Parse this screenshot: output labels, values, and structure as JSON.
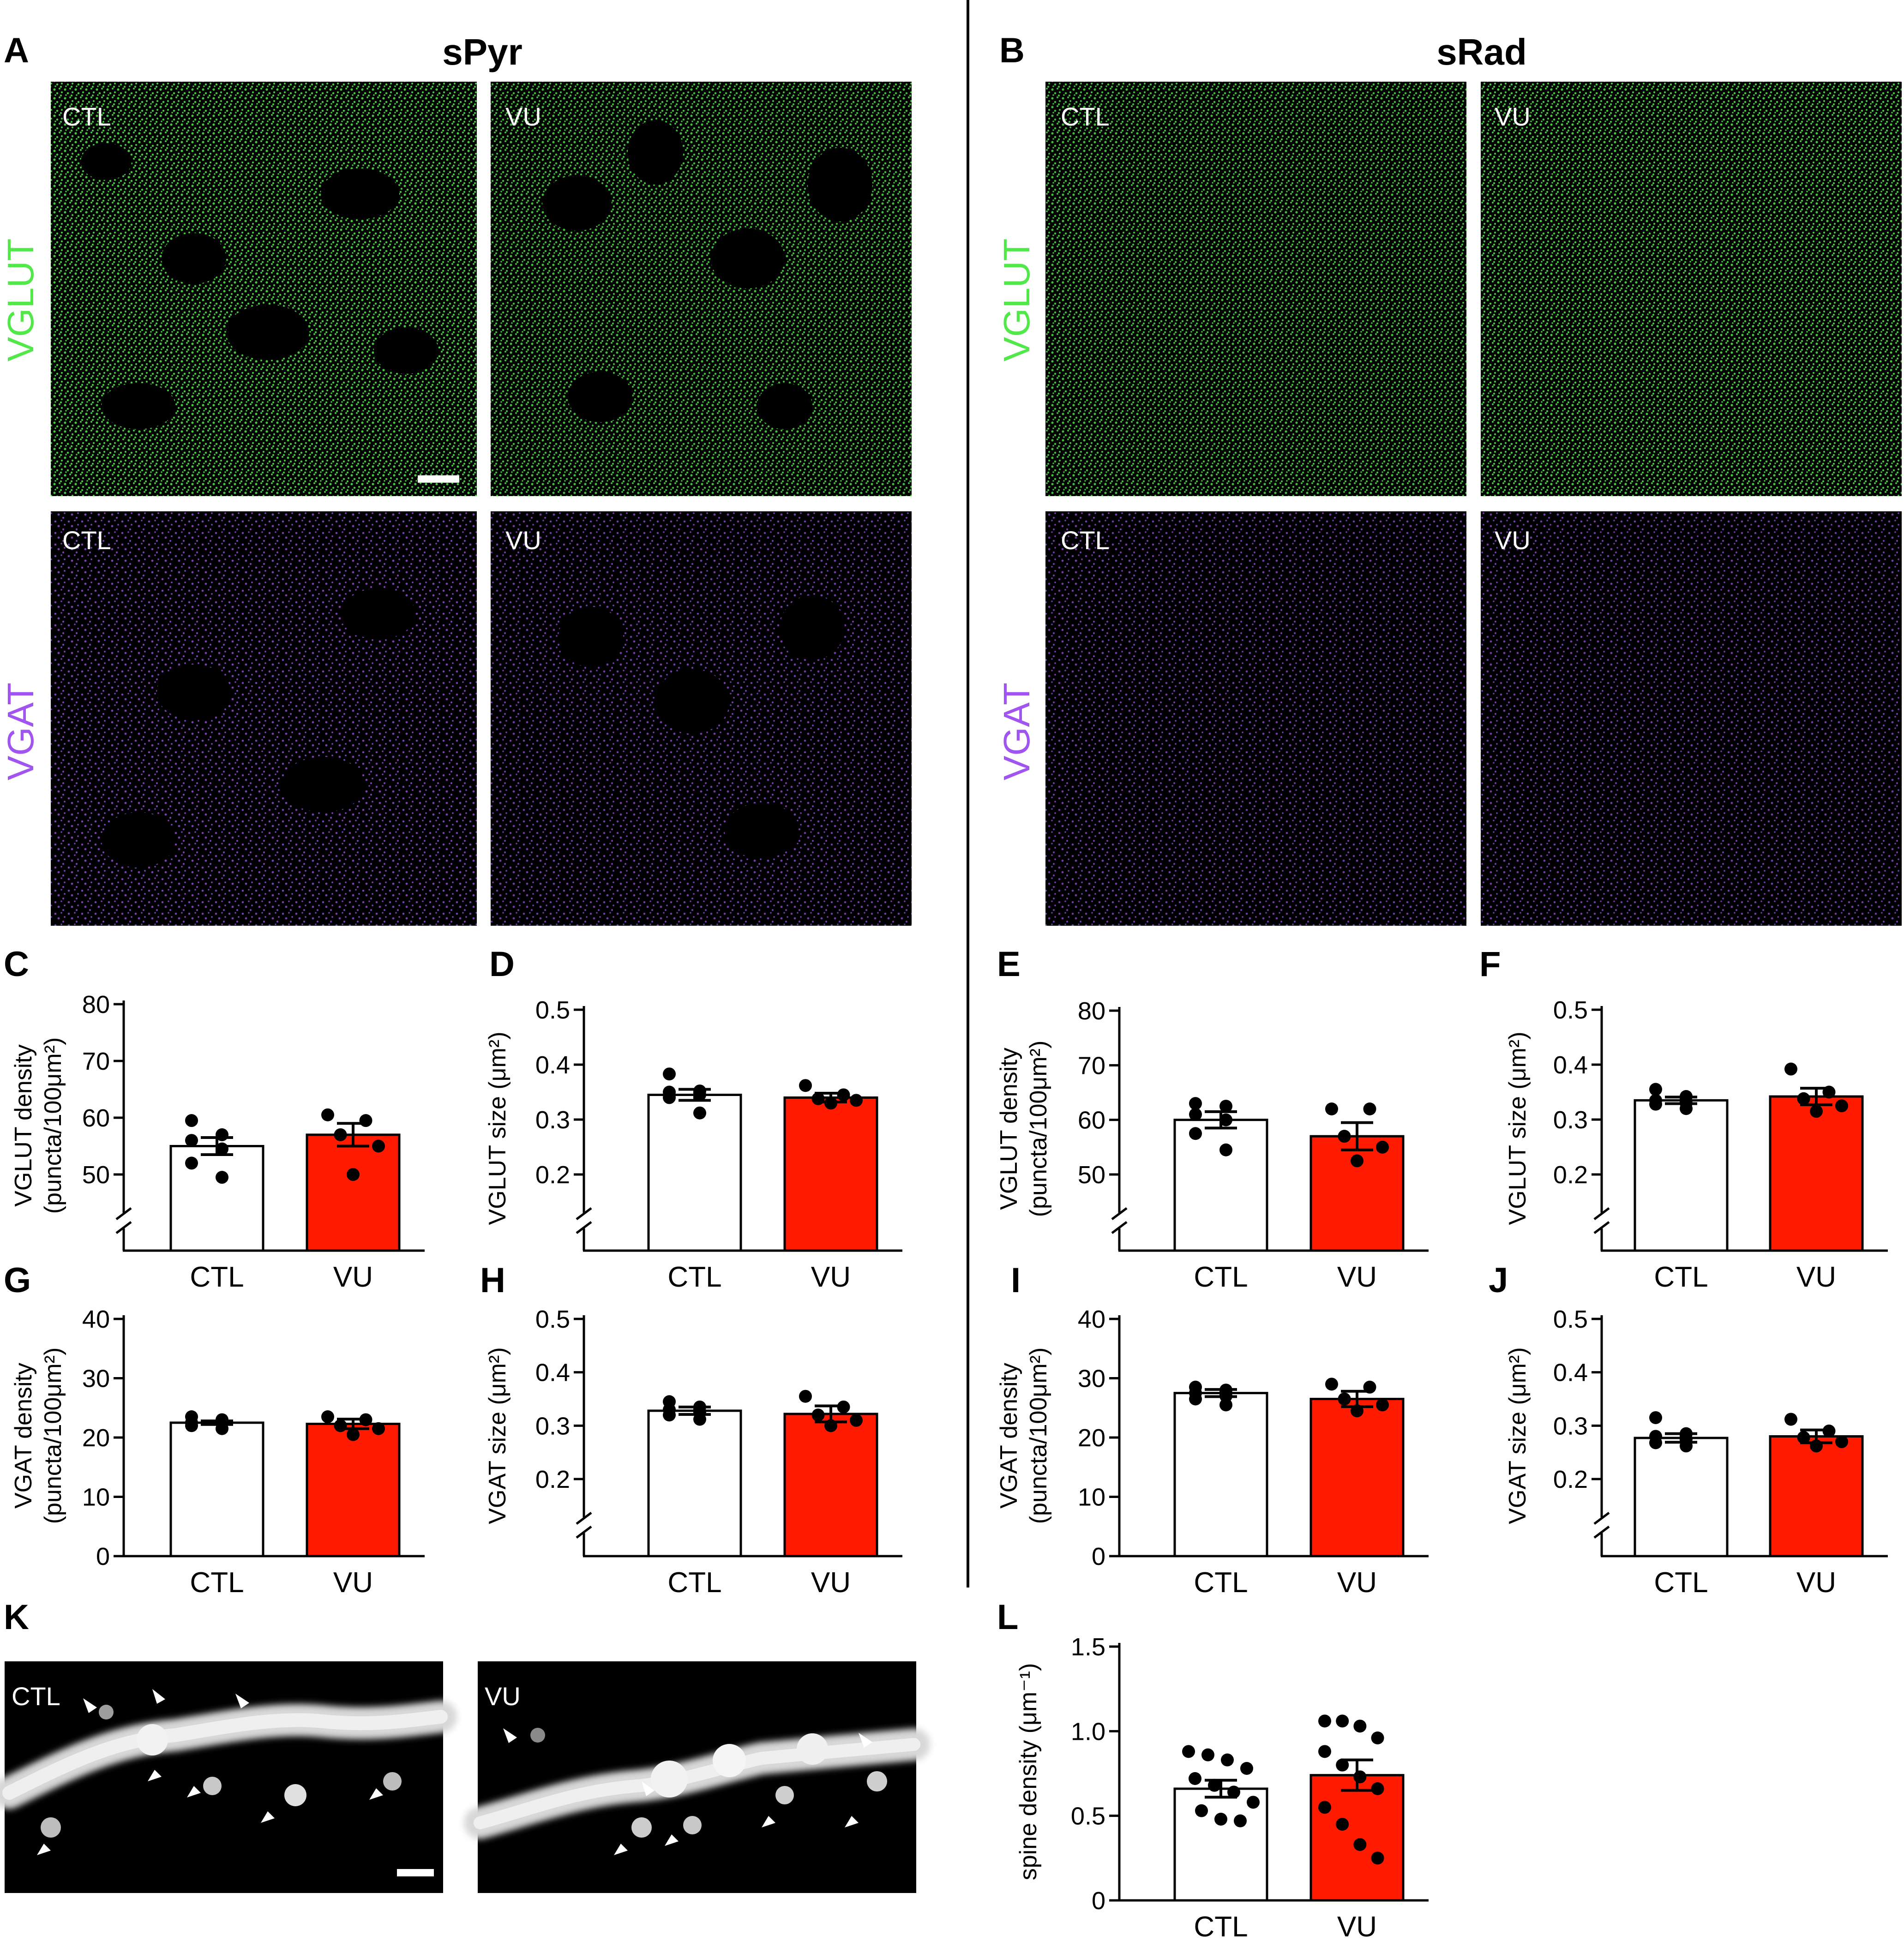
{
  "figure": {
    "panel_letters": [
      "A",
      "B",
      "C",
      "D",
      "E",
      "F",
      "G",
      "H",
      "I",
      "J",
      "K",
      "L"
    ],
    "column_titles": {
      "A": "sPyr",
      "B": "sRad"
    },
    "row_labels": {
      "vglut": "VGLUT",
      "vgat": "VGAT"
    },
    "image_tags": {
      "ctl": "CTL",
      "vu": "VU"
    },
    "colors": {
      "vglut": "#52e84a",
      "vgat": "#a155f0",
      "vu_bar": "#ff1a00",
      "ctl_bar": "#ffffff"
    }
  },
  "chart_data": [
    {
      "id": "C",
      "type": "bar",
      "categories": [
        "CTL",
        "VU"
      ],
      "values": [
        55.0,
        57.0
      ],
      "sem": [
        1.5,
        2.0
      ],
      "ylabel": [
        "VGLUT density",
        "(puncta/100μm²)"
      ],
      "ylim": [
        45,
        80
      ],
      "yticks": [
        50,
        60,
        70,
        80
      ],
      "axis_break": true,
      "points": [
        [
          59.5,
          57,
          56,
          54.5,
          52,
          49.5
        ],
        [
          60.5,
          59.5,
          57,
          55,
          50
        ]
      ]
    },
    {
      "id": "D",
      "type": "bar",
      "categories": [
        "CTL",
        "VU"
      ],
      "values": [
        0.345,
        0.34
      ],
      "sem": [
        0.01,
        0.008
      ],
      "ylabel": [
        "VGLUT size (μm²)"
      ],
      "ylim": [
        0.15,
        0.5
      ],
      "yticks": [
        0.2,
        0.3,
        0.4,
        0.5
      ],
      "axis_break": true,
      "points": [
        [
          0.383,
          0.352,
          0.35,
          0.345,
          0.34,
          0.312
        ],
        [
          0.362,
          0.345,
          0.338,
          0.335,
          0.33
        ]
      ]
    },
    {
      "id": "E",
      "type": "bar",
      "categories": [
        "CTL",
        "VU"
      ],
      "values": [
        60.0,
        57.0
      ],
      "sem": [
        1.5,
        2.5
      ],
      "ylabel": [
        "VGLUT density",
        "(puncta/100μm²)"
      ],
      "ylim": [
        45,
        80
      ],
      "yticks": [
        50,
        60,
        70,
        80
      ],
      "axis_break": true,
      "points": [
        [
          63,
          62.5,
          61,
          60,
          57.5,
          54.5
        ],
        [
          62,
          62,
          57,
          55,
          52.5
        ]
      ]
    },
    {
      "id": "F",
      "type": "bar",
      "categories": [
        "CTL",
        "VU"
      ],
      "values": [
        0.335,
        0.342
      ],
      "sem": [
        0.006,
        0.015
      ],
      "ylabel": [
        "VGLUT size (μm²)"
      ],
      "ylim": [
        0.15,
        0.5
      ],
      "yticks": [
        0.2,
        0.3,
        0.4,
        0.5
      ],
      "axis_break": true,
      "points": [
        [
          0.355,
          0.342,
          0.335,
          0.33,
          0.328,
          0.32
        ],
        [
          0.392,
          0.35,
          0.338,
          0.325,
          0.315
        ]
      ]
    },
    {
      "id": "G",
      "type": "bar",
      "categories": [
        "CTL",
        "VU"
      ],
      "values": [
        22.5,
        22.3
      ],
      "sem": [
        0.3,
        0.8
      ],
      "ylabel": [
        "VGAT density",
        "(puncta/100μm²)"
      ],
      "ylim": [
        0,
        40
      ],
      "yticks": [
        0,
        10,
        20,
        30,
        40
      ],
      "axis_break": false,
      "points": [
        [
          23.5,
          23,
          22.5,
          22.5,
          22,
          21.5
        ],
        [
          23.5,
          23,
          22,
          21.5,
          20.5
        ]
      ]
    },
    {
      "id": "H",
      "type": "bar",
      "categories": [
        "CTL",
        "VU"
      ],
      "values": [
        0.328,
        0.322
      ],
      "sem": [
        0.007,
        0.015
      ],
      "ylabel": [
        "VGAT size (μm²)"
      ],
      "ylim": [
        0.15,
        0.5
      ],
      "yticks": [
        0.2,
        0.3,
        0.4,
        0.5
      ],
      "axis_break": true,
      "points": [
        [
          0.345,
          0.335,
          0.33,
          0.325,
          0.32,
          0.312
        ],
        [
          0.355,
          0.335,
          0.32,
          0.31,
          0.3
        ]
      ]
    },
    {
      "id": "I",
      "type": "bar",
      "categories": [
        "CTL",
        "VU"
      ],
      "values": [
        27.5,
        26.5
      ],
      "sem": [
        0.6,
        1.3
      ],
      "ylabel": [
        "VGAT density",
        "(puncta/100μm²)"
      ],
      "ylim": [
        0,
        40
      ],
      "yticks": [
        0,
        10,
        20,
        30,
        40
      ],
      "axis_break": false,
      "points": [
        [
          28.5,
          28,
          27.5,
          27,
          26.5,
          25.5
        ],
        [
          29,
          28.5,
          26.5,
          25.5,
          24.5
        ]
      ]
    },
    {
      "id": "J",
      "type": "bar",
      "categories": [
        "CTL",
        "VU"
      ],
      "values": [
        0.277,
        0.28
      ],
      "sem": [
        0.008,
        0.012
      ],
      "ylabel": [
        "VGAT size (μm²)"
      ],
      "ylim": [
        0.15,
        0.5
      ],
      "yticks": [
        0.2,
        0.3,
        0.4,
        0.5
      ],
      "axis_break": true,
      "points": [
        [
          0.315,
          0.285,
          0.28,
          0.275,
          0.268,
          0.262
        ],
        [
          0.312,
          0.29,
          0.278,
          0.27,
          0.262
        ]
      ]
    },
    {
      "id": "L",
      "type": "bar",
      "categories": [
        "CTL",
        "VU"
      ],
      "values": [
        0.66,
        0.74
      ],
      "sem": [
        0.05,
        0.09
      ],
      "ylabel": [
        "spine density (μm⁻¹)"
      ],
      "ylim": [
        0,
        1.5
      ],
      "yticks": [
        0,
        0.5,
        1.0,
        1.5
      ],
      "ytick_labels": [
        "0",
        "0.5",
        "1.0",
        "1.5"
      ],
      "axis_break": false,
      "points": [
        [
          0.88,
          0.86,
          0.83,
          0.78,
          0.72,
          0.68,
          0.64,
          0.58,
          0.53,
          0.48,
          0.47
        ],
        [
          1.06,
          1.06,
          1.03,
          0.96,
          0.88,
          0.8,
          0.73,
          0.66,
          0.55,
          0.45,
          0.33,
          0.25
        ]
      ]
    }
  ]
}
